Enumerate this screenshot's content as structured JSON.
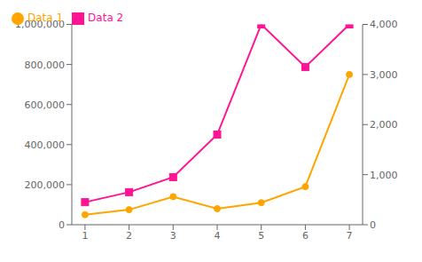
{
  "chart_data": {
    "type": "line",
    "x": [
      1,
      2,
      3,
      4,
      5,
      6,
      7
    ],
    "xlim": [
      0.7,
      7.3
    ],
    "xticks": [
      1,
      2,
      3,
      4,
      5,
      6,
      7
    ],
    "ylim": [
      0,
      1000000
    ],
    "yticks": [
      0,
      {
        "value": 200000,
        "label": "200,000"
      },
      {
        "value": 400000,
        "label": "400,000"
      },
      {
        "value": 600000,
        "label": "600,000"
      },
      {
        "value": 800000,
        "label": "800,000"
      },
      {
        "value": 1000000,
        "label": "1,000,000"
      }
    ],
    "y2lim": [
      0,
      4000
    ],
    "y2ticks": [
      0,
      {
        "value": 1000,
        "label": "1,000"
      },
      {
        "value": 2000,
        "label": "2,000"
      },
      {
        "value": 3000,
        "label": "3,000"
      },
      {
        "value": 4000,
        "label": "4,000"
      }
    ],
    "series": [
      {
        "name": "Data 1",
        "color": "#FFA500",
        "marker": "circle",
        "values": [
          50000,
          75000,
          140000,
          80000,
          110000,
          190000,
          750000
        ]
      },
      {
        "name": "Data 2",
        "color": "#FF1493",
        "marker": "square",
        "axis": "y2",
        "values": [
          450,
          650,
          950,
          1800,
          4000,
          3150,
          4000
        ]
      }
    ],
    "legend": "upper left",
    "grid": false
  }
}
